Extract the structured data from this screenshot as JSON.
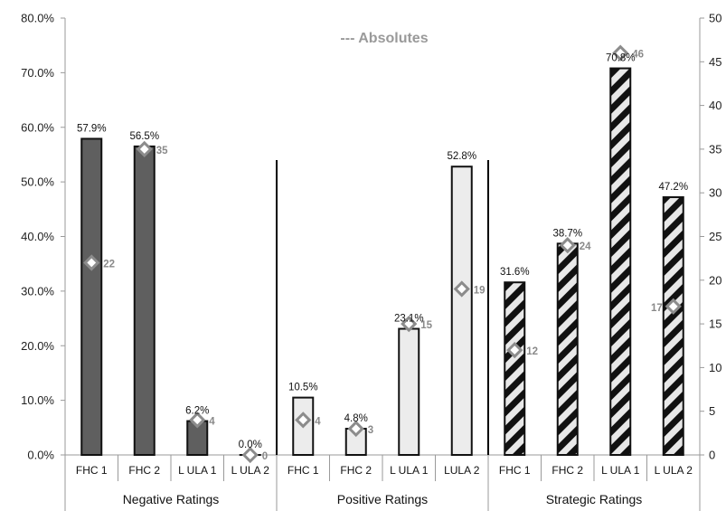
{
  "chart_data": {
    "type": "bar",
    "title": "--- Absolutes",
    "y_left": {
      "ylim": [
        0,
        80
      ],
      "ticks": [
        "0.0%",
        "10.0%",
        "20.0%",
        "30.0%",
        "40.0%",
        "50.0%",
        "60.0%",
        "70.0%",
        "80.0%"
      ]
    },
    "y_right": {
      "ylim": [
        0,
        50
      ],
      "ticks": [
        "0",
        "5",
        "10",
        "15",
        "20",
        "25",
        "30",
        "35",
        "40",
        "45",
        "50"
      ]
    },
    "grid": false,
    "colors": {
      "negative": "#5f5f5f",
      "positive": "#ececec",
      "strategic_stripe": "#111111",
      "strategic_bg": "#e8e8e8",
      "marker": "#8c8c8c",
      "absolute_label": "#8a8a8a"
    },
    "groups": [
      {
        "name": "Negative Ratings",
        "style": "solid-dark",
        "categories": [
          "FHC 1",
          "FHC 2",
          "L ULA 1",
          "L ULA 2"
        ],
        "values": [
          57.9,
          56.5,
          6.2,
          0.0
        ],
        "value_labels": [
          "57.9%",
          "56.5%",
          "6.2%",
          "0.0%"
        ],
        "absolutes": [
          22,
          35,
          4,
          0
        ]
      },
      {
        "name": "Positive Ratings",
        "style": "light",
        "categories": [
          "FHC 1",
          "FHC 2",
          "L ULA 1",
          "LULA 2"
        ],
        "values": [
          10.5,
          4.8,
          23.1,
          52.8
        ],
        "value_labels": [
          "10.5%",
          "4.8%",
          "23.1%",
          "52.8%"
        ],
        "absolutes": [
          4,
          3,
          15,
          19
        ]
      },
      {
        "name": "Strategic Ratings",
        "style": "hatched",
        "categories": [
          "FHC 1",
          "FHC 2",
          "L ULA 1",
          "L ULA 2"
        ],
        "values": [
          31.6,
          38.7,
          70.8,
          47.2
        ],
        "value_labels": [
          "31.6%",
          "38.7%",
          "70.8%",
          "47.2%"
        ],
        "absolutes": [
          12,
          24,
          46,
          17
        ]
      }
    ]
  }
}
